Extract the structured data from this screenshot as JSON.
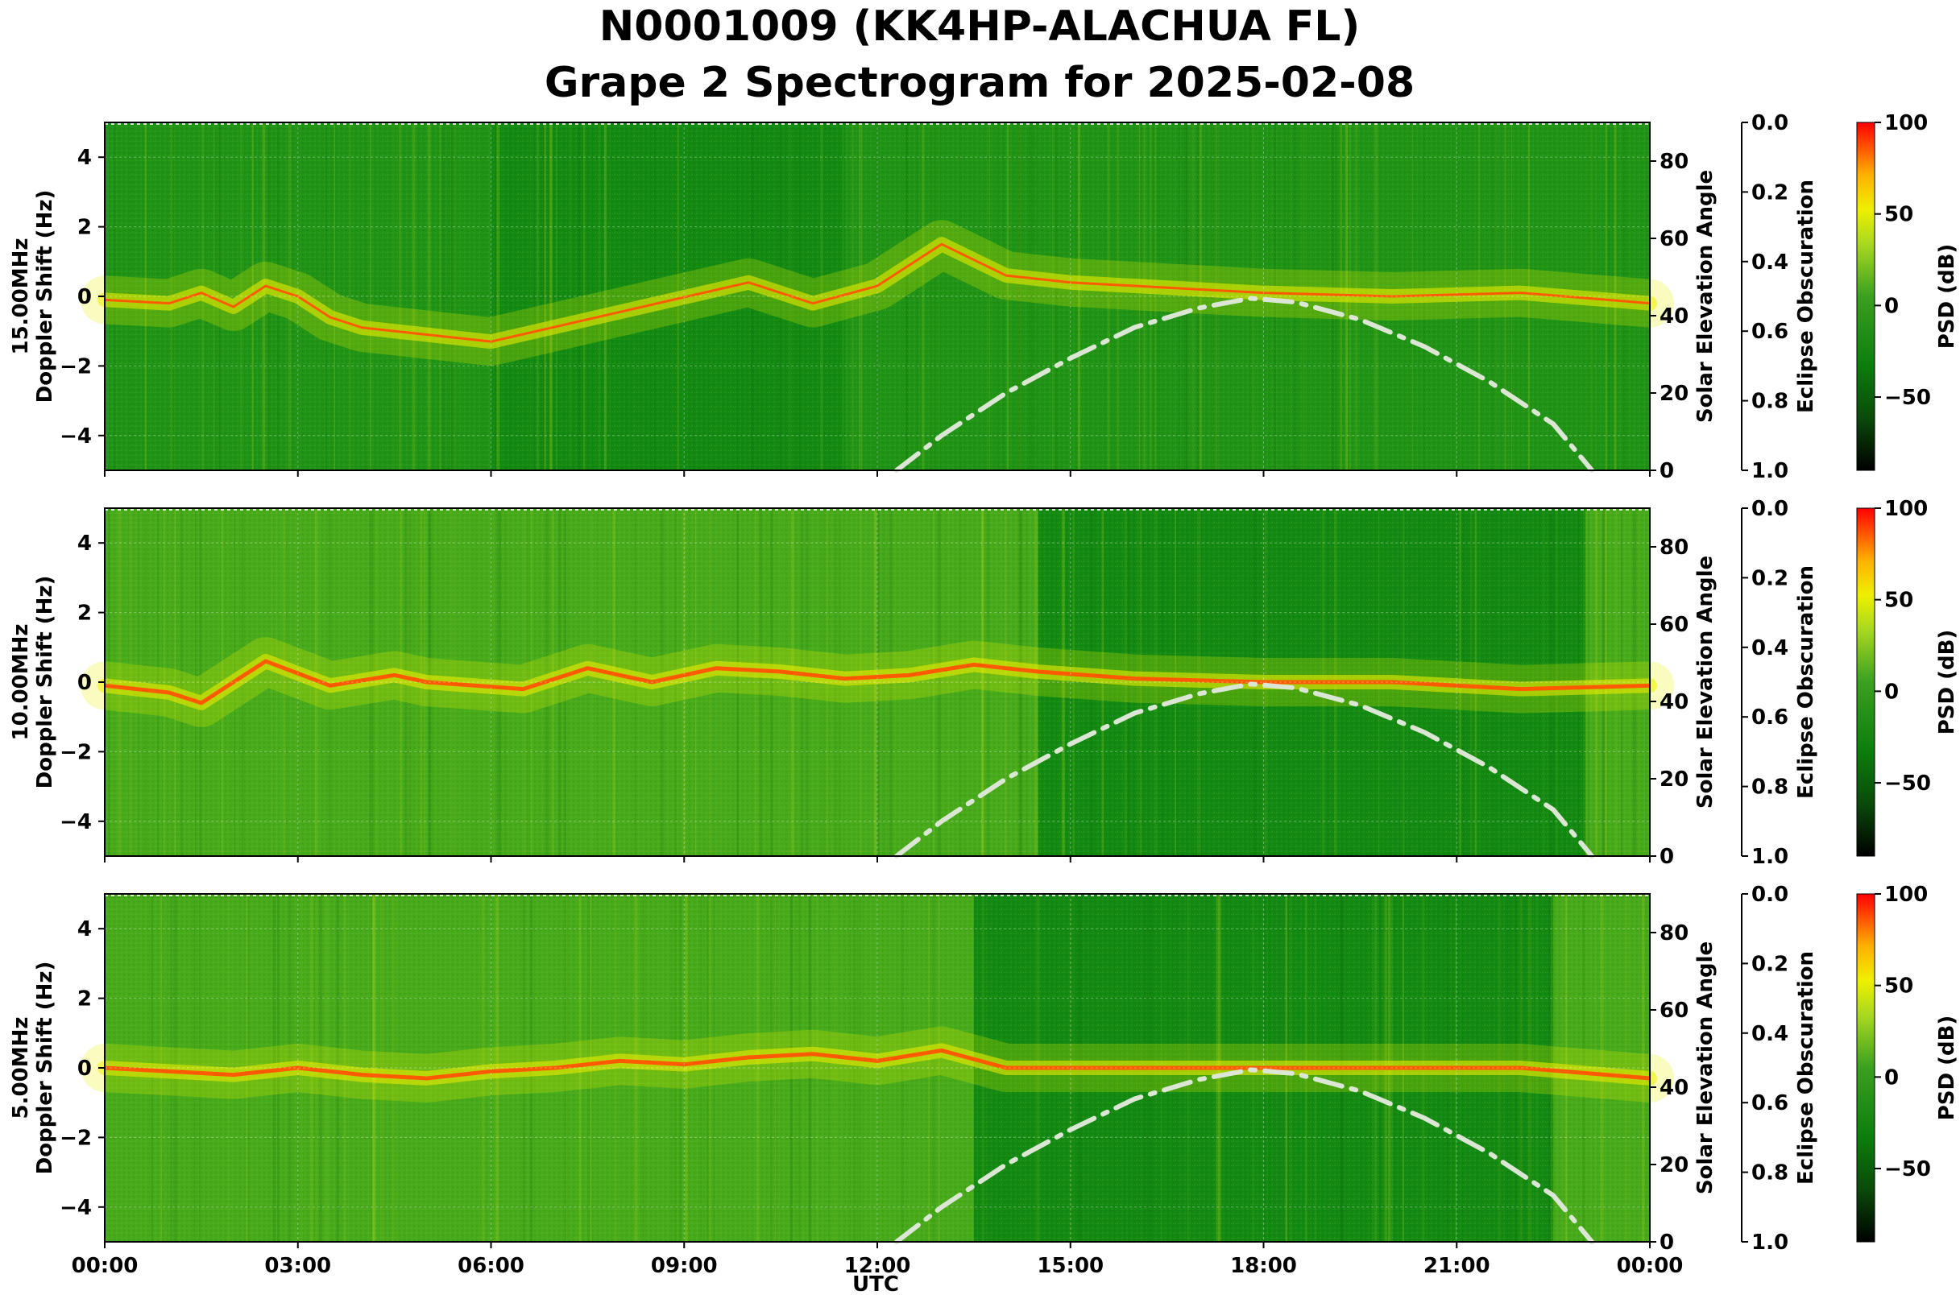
{
  "title_line1": "N0001009 (KK4HP-ALACHUA FL)",
  "title_line2": "Grape 2 Spectrogram for 2025-02-08",
  "chart_data": [
    {
      "type": "heatmap",
      "panel": "15.00MHz",
      "ylabel_line1": "15.00MHz",
      "ylabel_line2": "Doppler Shift (Hz)",
      "ylim": [
        -5,
        5
      ],
      "yticks": [
        4,
        2,
        0,
        -2,
        -4
      ],
      "ytick_labels": [
        "4",
        "2",
        "0",
        "−2",
        "−4"
      ],
      "right_axis_label": "Solar Elevation Angle",
      "right_ticks": [
        "80",
        "60",
        "40",
        "20",
        "0"
      ],
      "eclipse_label": "Eclipse Obscuration",
      "eclipse_ticks": [
        "0.0",
        "0.2",
        "0.4",
        "0.6",
        "0.8",
        "1.0"
      ],
      "colorbar_label": "PSD (dB)",
      "colorbar_ticks": [
        "100",
        "50",
        "0",
        "−50"
      ],
      "carrier_trace": [
        [
          0.0,
          -0.1
        ],
        [
          1.0,
          -0.2
        ],
        [
          1.5,
          0.1
        ],
        [
          2.0,
          -0.3
        ],
        [
          2.5,
          0.3
        ],
        [
          3.0,
          0.0
        ],
        [
          3.5,
          -0.6
        ],
        [
          4.0,
          -0.9
        ],
        [
          5.0,
          -1.1
        ],
        [
          6.0,
          -1.3
        ],
        [
          10.0,
          0.4
        ],
        [
          11.0,
          -0.2
        ],
        [
          12.0,
          0.3
        ],
        [
          13.0,
          1.5
        ],
        [
          14.0,
          0.6
        ],
        [
          15.0,
          0.4
        ],
        [
          16.0,
          0.3
        ],
        [
          17.0,
          0.2
        ],
        [
          18.0,
          0.1
        ],
        [
          20.0,
          0.0
        ],
        [
          22.0,
          0.1
        ],
        [
          24.0,
          -0.2
        ]
      ]
    },
    {
      "type": "heatmap",
      "panel": "10.00MHz",
      "ylabel_line1": "10.00MHz",
      "ylabel_line2": "Doppler Shift (Hz)",
      "ylim": [
        -5,
        5
      ],
      "yticks": [
        4,
        2,
        0,
        -2,
        -4
      ],
      "ytick_labels": [
        "4",
        "2",
        "0",
        "−2",
        "−4"
      ],
      "right_axis_label": "Solar Elevation Angle",
      "right_ticks": [
        "80",
        "60",
        "40",
        "20",
        "0"
      ],
      "eclipse_label": "Eclipse Obscuration",
      "eclipse_ticks": [
        "0.0",
        "0.2",
        "0.4",
        "0.6",
        "0.8",
        "1.0"
      ],
      "colorbar_label": "PSD (dB)",
      "colorbar_ticks": [
        "100",
        "50",
        "0",
        "−50"
      ],
      "carrier_trace": [
        [
          0.0,
          -0.1
        ],
        [
          1.0,
          -0.3
        ],
        [
          1.5,
          -0.6
        ],
        [
          2.5,
          0.6
        ],
        [
          3.5,
          -0.1
        ],
        [
          4.5,
          0.2
        ],
        [
          5.0,
          0.0
        ],
        [
          6.5,
          -0.2
        ],
        [
          7.5,
          0.4
        ],
        [
          8.5,
          0.0
        ],
        [
          9.5,
          0.4
        ],
        [
          10.5,
          0.3
        ],
        [
          11.5,
          0.1
        ],
        [
          12.5,
          0.2
        ],
        [
          13.5,
          0.5
        ],
        [
          14.5,
          0.3
        ],
        [
          16.0,
          0.1
        ],
        [
          18.0,
          0.0
        ],
        [
          20.0,
          0.0
        ],
        [
          22.0,
          -0.2
        ],
        [
          24.0,
          -0.1
        ]
      ]
    },
    {
      "type": "heatmap",
      "panel": "5.00MHz",
      "ylabel_line1": "5.00MHz",
      "ylabel_line2": "Doppler Shift (Hz)",
      "ylim": [
        -5,
        5
      ],
      "yticks": [
        4,
        2,
        0,
        -2,
        -4
      ],
      "ytick_labels": [
        "4",
        "2",
        "0",
        "−2",
        "−4"
      ],
      "right_axis_label": "Solar Elevation Angle",
      "right_ticks": [
        "80",
        "60",
        "40",
        "20",
        "0"
      ],
      "eclipse_label": "Eclipse Obscuration",
      "eclipse_ticks": [
        "0.0",
        "0.2",
        "0.4",
        "0.6",
        "0.8",
        "1.0"
      ],
      "colorbar_label": "PSD (dB)",
      "colorbar_ticks": [
        "100",
        "50",
        "0",
        "−50"
      ],
      "carrier_trace": [
        [
          0.0,
          0.0
        ],
        [
          1.0,
          -0.1
        ],
        [
          2.0,
          -0.2
        ],
        [
          3.0,
          0.0
        ],
        [
          4.0,
          -0.2
        ],
        [
          5.0,
          -0.3
        ],
        [
          6.0,
          -0.1
        ],
        [
          7.0,
          0.0
        ],
        [
          8.0,
          0.2
        ],
        [
          9.0,
          0.1
        ],
        [
          10.0,
          0.3
        ],
        [
          11.0,
          0.4
        ],
        [
          12.0,
          0.2
        ],
        [
          13.0,
          0.5
        ],
        [
          14.0,
          0.0
        ],
        [
          16.0,
          0.0
        ],
        [
          18.0,
          0.0
        ],
        [
          20.0,
          0.0
        ],
        [
          22.0,
          0.0
        ],
        [
          24.0,
          -0.3
        ]
      ]
    }
  ],
  "solar_elevation": [
    [
      12.3,
      0
    ],
    [
      13,
      9
    ],
    [
      14,
      20
    ],
    [
      15,
      29
    ],
    [
      16,
      37
    ],
    [
      17,
      42
    ],
    [
      17.8,
      44.5
    ],
    [
      18.5,
      43.5
    ],
    [
      19.5,
      39
    ],
    [
      20.5,
      32
    ],
    [
      21.5,
      23
    ],
    [
      22.5,
      12
    ],
    [
      23.1,
      0
    ]
  ],
  "solar_ylim": [
    0,
    90
  ],
  "x_axis": {
    "label": "UTC",
    "xlim": [
      0,
      24
    ],
    "ticks": [
      0,
      3,
      6,
      9,
      12,
      15,
      18,
      21,
      24
    ],
    "tick_labels": [
      "00:00",
      "03:00",
      "06:00",
      "09:00",
      "12:00",
      "15:00",
      "18:00",
      "21:00",
      "00:00"
    ]
  },
  "colors": {
    "carrier": "#ff5a00",
    "elevation_line": "#dce6d4",
    "colormap": [
      "#000000",
      "#0a5a0a",
      "#0c7d0c",
      "#3fa01e",
      "#8ccf28",
      "#e8f000",
      "#ffd000",
      "#ff7000",
      "#ff0000"
    ]
  }
}
